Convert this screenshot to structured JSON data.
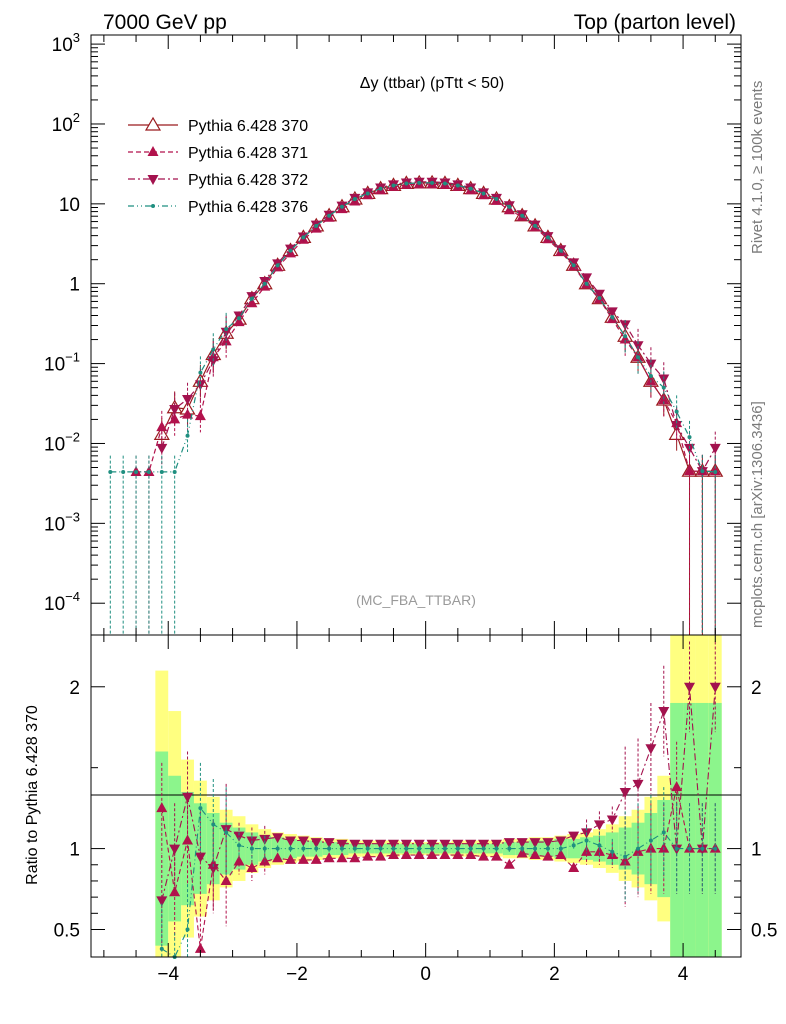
{
  "header": {
    "energy_label": "7000 GeV pp",
    "process_label": "Top (parton level)"
  },
  "side_text": {
    "rivet_label": "Rivet 4.1.0, ≥ 100k events",
    "source_label": "mcplots.cern.ch [arXiv:1306.3436]"
  },
  "colors": {
    "s370": "#9b1b1f",
    "s371": "#b2124c",
    "s372": "#a3124e",
    "s376": "#1f8f80",
    "band_outer": "#ffff80",
    "band_inner": "#8cf58c"
  },
  "chart_data": [
    {
      "type": "line",
      "scale": "log",
      "title": "Δy (ttbar) (pTtt < 50)",
      "analysis_label": "(MC_FBA_TTBAR)",
      "xlim": [
        -5.2,
        4.9
      ],
      "ylim": [
        4e-05,
        1300
      ],
      "y_ticks": [
        "10^3",
        "10^2",
        "10",
        "1",
        "10^-1",
        "10^-2",
        "10^-3",
        "10^-4"
      ],
      "legend": [
        {
          "name": "Pythia 6.428 370",
          "marker": "triangle-open",
          "style": "solid"
        },
        {
          "name": "Pythia 6.428 371",
          "marker": "triangle-up",
          "style": "dashed"
        },
        {
          "name": "Pythia 6.428 372",
          "marker": "triangle-down",
          "style": "dashdot"
        },
        {
          "name": "Pythia 6.428 376",
          "marker": "dot",
          "style": "dashdotdot"
        }
      ],
      "x": [
        -4.9,
        -4.7,
        -4.5,
        -4.3,
        -4.1,
        -3.9,
        -3.7,
        -3.5,
        -3.3,
        -3.1,
        -2.9,
        -2.7,
        -2.5,
        -2.3,
        -2.1,
        -1.9,
        -1.7,
        -1.5,
        -1.3,
        -1.1,
        -0.9,
        -0.7,
        -0.5,
        -0.3,
        -0.1,
        0.1,
        0.3,
        0.5,
        0.7,
        0.9,
        1.1,
        1.3,
        1.5,
        1.7,
        1.9,
        2.1,
        2.3,
        2.5,
        2.7,
        2.9,
        3.1,
        3.3,
        3.5,
        3.7,
        3.9,
        4.1,
        4.3,
        4.5
      ],
      "series": [
        {
          "name": "Pythia 6.428 370",
          "values": [
            null,
            null,
            null,
            null,
            0.013,
            0.028,
            0.027,
            0.06,
            0.13,
            0.24,
            0.36,
            0.65,
            1.0,
            1.7,
            2.6,
            3.8,
            5.3,
            7.1,
            9.2,
            11.5,
            13.5,
            15.5,
            17.0,
            18.0,
            18.3,
            18.3,
            18.0,
            17.0,
            15.5,
            13.5,
            11.5,
            9.2,
            7.1,
            5.3,
            3.8,
            2.6,
            1.7,
            1.0,
            0.65,
            0.38,
            0.22,
            0.12,
            0.06,
            0.035,
            0.013,
            0.0045,
            0.0045,
            0.0045
          ]
        },
        {
          "name": "Pythia 6.428 371",
          "values": [
            null,
            null,
            0.0044,
            0.0044,
            0.016,
            0.02,
            0.023,
            0.022,
            0.12,
            0.19,
            0.33,
            0.57,
            0.92,
            1.6,
            2.4,
            3.55,
            4.9,
            6.7,
            8.6,
            10.7,
            12.8,
            14.8,
            16.3,
            17.3,
            17.6,
            17.6,
            17.3,
            16.3,
            14.8,
            12.8,
            10.9,
            8.3,
            6.9,
            5.1,
            3.6,
            2.5,
            1.65,
            0.98,
            0.64,
            0.36,
            0.2,
            0.12,
            0.06,
            0.035,
            0.018,
            0.0045,
            0.0045,
            0.0045
          ]
        },
        {
          "name": "Pythia 6.428 372",
          "values": [
            null,
            null,
            null,
            null,
            0.0088,
            0.027,
            0.036,
            0.055,
            0.11,
            0.25,
            0.4,
            0.7,
            1.08,
            1.8,
            2.75,
            3.9,
            5.5,
            7.3,
            9.5,
            11.9,
            13.9,
            16.0,
            17.5,
            18.5,
            18.9,
            18.9,
            18.5,
            17.5,
            16.0,
            13.9,
            11.9,
            9.6,
            7.4,
            5.5,
            3.95,
            2.7,
            1.85,
            1.2,
            0.75,
            0.45,
            0.31,
            0.17,
            0.1,
            0.065,
            0.017,
            0.0088,
            0.0045,
            0.0088
          ]
        },
        {
          "name": "Pythia 6.428 376",
          "values": [
            0.0044,
            0.0044,
            0.0044,
            0.0044,
            0.0044,
            0.0044,
            0.0125,
            0.077,
            0.15,
            0.27,
            0.37,
            0.65,
            1.0,
            1.7,
            2.6,
            3.8,
            5.3,
            7.1,
            9.2,
            11.5,
            13.5,
            15.5,
            17.0,
            18.0,
            18.3,
            18.3,
            18.0,
            17.0,
            15.5,
            13.5,
            11.5,
            9.2,
            7.1,
            5.3,
            3.8,
            2.6,
            1.7,
            1.0,
            0.66,
            0.38,
            0.22,
            0.12,
            0.07,
            0.05,
            0.025,
            0.012,
            0.0045,
            0.0044
          ]
        }
      ]
    },
    {
      "type": "line",
      "ylabel": "Ratio to Pythia 6.428 370",
      "ylim": [
        0.33,
        2.32
      ],
      "x_ticks": [
        "−4",
        "−2",
        "0",
        "2",
        "4"
      ],
      "x_tick_values": [
        -4,
        -2,
        0,
        2,
        4
      ],
      "y_ticks": [
        "2",
        "1",
        "0.5"
      ],
      "y_tick_values": [
        2,
        1,
        0.5
      ],
      "x": [
        -4.1,
        -3.9,
        -3.7,
        -3.5,
        -3.3,
        -3.1,
        -2.9,
        -2.7,
        -2.5,
        -2.3,
        -2.1,
        -1.9,
        -1.7,
        -1.5,
        -1.3,
        -1.1,
        -0.9,
        -0.7,
        -0.5,
        -0.3,
        -0.1,
        0.1,
        0.3,
        0.5,
        0.7,
        0.9,
        1.1,
        1.3,
        1.5,
        1.7,
        1.9,
        2.1,
        2.3,
        2.5,
        2.7,
        2.9,
        3.1,
        3.3,
        3.5,
        3.7,
        3.9,
        4.1,
        4.3,
        4.5
      ],
      "band_outer": [
        2.1,
        1.85,
        1.55,
        1.42,
        1.32,
        1.24,
        1.2,
        1.15,
        1.12,
        1.1,
        1.09,
        1.08,
        1.07,
        1.06,
        1.06,
        1.05,
        1.05,
        1.05,
        1.05,
        1.04,
        1.04,
        1.04,
        1.04,
        1.05,
        1.05,
        1.05,
        1.05,
        1.06,
        1.06,
        1.07,
        1.07,
        1.08,
        1.09,
        1.1,
        1.12,
        1.15,
        1.2,
        1.24,
        1.32,
        1.45,
        2.32,
        2.32,
        2.32,
        2.32
      ],
      "band_inner": [
        1.6,
        1.45,
        1.35,
        1.28,
        1.22,
        1.16,
        1.13,
        1.1,
        1.08,
        1.07,
        1.06,
        1.05,
        1.05,
        1.04,
        1.04,
        1.03,
        1.03,
        1.03,
        1.03,
        1.03,
        1.03,
        1.03,
        1.03,
        1.03,
        1.03,
        1.03,
        1.03,
        1.04,
        1.04,
        1.05,
        1.05,
        1.06,
        1.06,
        1.07,
        1.08,
        1.1,
        1.13,
        1.16,
        1.22,
        1.3,
        1.9,
        1.9,
        1.9,
        1.9
      ],
      "series": [
        {
          "name": "Pythia 6.428 371",
          "values": [
            1.25,
            0.73,
            1.05,
            0.38,
            0.9,
            0.8,
            0.92,
            0.88,
            0.92,
            0.94,
            0.93,
            0.93,
            0.93,
            0.94,
            0.94,
            0.94,
            0.95,
            0.95,
            0.96,
            0.96,
            0.96,
            0.96,
            0.96,
            0.96,
            0.96,
            0.95,
            0.95,
            0.9,
            0.97,
            0.96,
            0.95,
            0.96,
            0.88,
            0.98,
            0.98,
            0.96,
            0.92,
            0.98,
            1.0,
            1.0,
            1.38,
            1.0,
            1.0,
            1.0
          ]
        },
        {
          "name": "Pythia 6.428 372",
          "values": [
            0.68,
            1.0,
            1.32,
            0.95,
            0.88,
            1.12,
            1.08,
            1.05,
            1.06,
            1.07,
            1.05,
            1.05,
            1.04,
            1.04,
            1.03,
            1.03,
            1.03,
            1.03,
            1.03,
            1.03,
            1.03,
            1.03,
            1.03,
            1.03,
            1.03,
            1.03,
            1.03,
            1.04,
            1.04,
            1.04,
            1.04,
            1.05,
            1.08,
            1.1,
            1.15,
            1.18,
            1.35,
            1.4,
            1.62,
            1.85,
            1.0,
            2.0,
            1.0,
            2.0
          ]
        },
        {
          "name": "Pythia 6.428 376",
          "values": [
            0.38,
            0.2,
            0.5,
            1.25,
            1.15,
            1.1,
            1.02,
            1.0,
            1.0,
            1.0,
            1.0,
            1.0,
            1.0,
            1.0,
            1.0,
            1.0,
            1.0,
            1.0,
            1.0,
            1.0,
            1.0,
            1.0,
            1.0,
            1.0,
            1.0,
            1.0,
            1.0,
            1.0,
            1.0,
            1.0,
            1.0,
            1.0,
            1.02,
            1.05,
            1.02,
            0.98,
            0.95,
            1.0,
            1.05,
            1.1,
            1.0,
            1.0,
            1.0,
            1.0
          ]
        }
      ]
    }
  ]
}
